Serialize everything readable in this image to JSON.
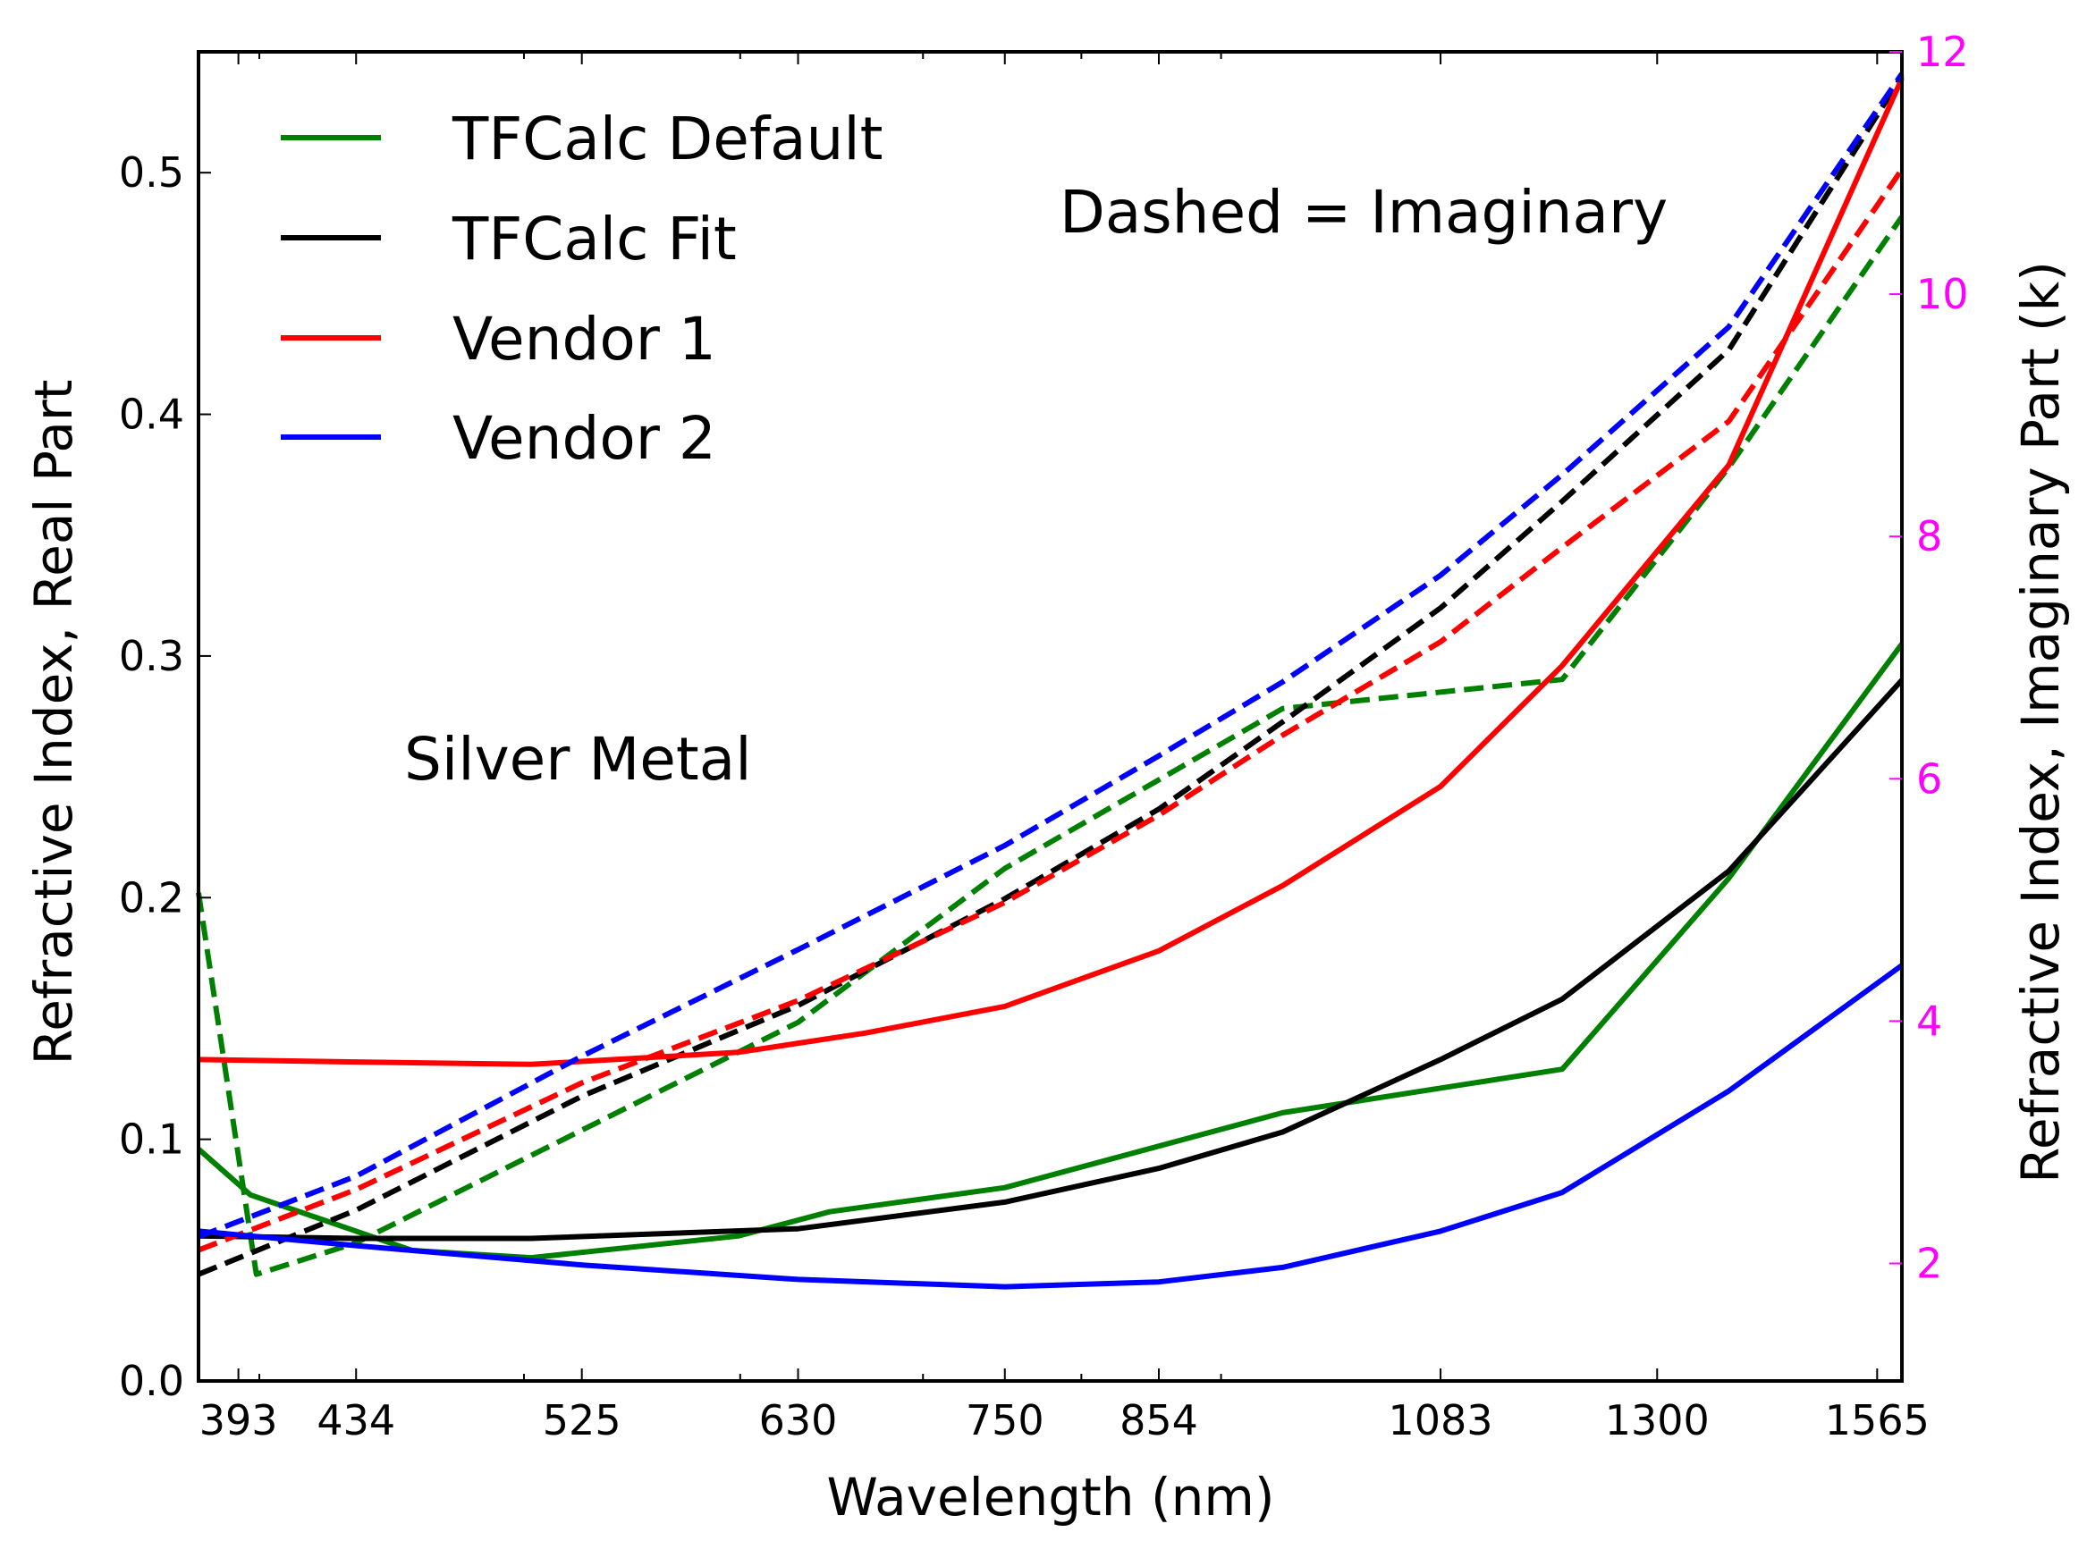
{
  "chart_data": {
    "type": "line",
    "title": "",
    "xlabel": "Wavelength (nm)",
    "ylabel": "Refractive Index,  Real Part",
    "ylabel_right": "Refractive Index, Imaginary Part (k)",
    "xscale": "log",
    "xlim": [
      380,
      1598
    ],
    "ylim": [
      0,
      0.55
    ],
    "ylim_right": [
      1.03,
      12
    ],
    "x_ticks": [
      393,
      434,
      525,
      630,
      750,
      854,
      1083,
      1300,
      1565
    ],
    "x_minor_ticks": [
      400,
      500,
      600,
      700,
      800,
      900
    ],
    "y_ticks": [
      "0.0",
      "0.1",
      "0.2",
      "0.3",
      "0.4",
      "0.5"
    ],
    "y_ticks_right": [
      "2",
      "4",
      "6",
      "8",
      "10",
      "12"
    ],
    "right_axis_color": "#ff00ff",
    "grid": false,
    "legend_placement": "top-left",
    "annotations": [
      "Dashed = Imaginary",
      "Silver Metal"
    ],
    "series": [
      {
        "name": "TFCalc Default",
        "color": "#008000",
        "axis": "left",
        "style": "solid",
        "x": [
          380,
          397,
          434,
          455,
          503,
          599,
          647,
          750,
          948,
          1200,
          1381,
          1598
        ],
        "y": [
          0.096,
          0.077,
          0.062,
          0.054,
          0.051,
          0.06,
          0.07,
          0.08,
          0.111,
          0.129,
          0.208,
          0.305
        ]
      },
      {
        "name": "TFCalc Default",
        "color": "#008000",
        "axis": "right",
        "style": "dashed",
        "x": [
          380,
          399,
          434,
          525,
          630,
          750,
          948,
          1200,
          1381,
          1598
        ],
        "y": [
          5.06,
          1.91,
          2.17,
          3.1,
          3.99,
          5.26,
          6.58,
          6.82,
          8.57,
          10.64
        ]
      },
      {
        "name": "TFCalc Fit",
        "color": "#000000",
        "axis": "left",
        "style": "solid",
        "x": [
          380,
          434,
          503,
          630,
          750,
          854,
          948,
          1083,
          1200,
          1381,
          1598
        ],
        "y": [
          0.06,
          0.059,
          0.059,
          0.063,
          0.074,
          0.088,
          0.103,
          0.133,
          0.158,
          0.211,
          0.29
        ]
      },
      {
        "name": "TFCalc Fit",
        "color": "#000000",
        "axis": "right",
        "style": "dashed",
        "x": [
          380,
          434,
          525,
          630,
          750,
          854,
          948,
          1083,
          1200,
          1381,
          1598
        ],
        "y": [
          1.91,
          2.44,
          3.38,
          4.13,
          5.01,
          5.75,
          6.47,
          7.41,
          8.29,
          9.54,
          11.8
        ]
      },
      {
        "name": "Vendor 1",
        "color": "#ff0000",
        "axis": "left",
        "style": "solid",
        "x": [
          380,
          434,
          503,
          599,
          667,
          750,
          854,
          948,
          1083,
          1200,
          1381,
          1598
        ],
        "y": [
          0.133,
          0.132,
          0.131,
          0.136,
          0.144,
          0.155,
          0.178,
          0.205,
          0.246,
          0.296,
          0.379,
          0.539
        ]
      },
      {
        "name": "Vendor 1",
        "color": "#ff0000",
        "axis": "right",
        "style": "dashed",
        "x": [
          380,
          434,
          525,
          630,
          750,
          854,
          948,
          1083,
          1200,
          1381,
          1598
        ],
        "y": [
          2.11,
          2.61,
          3.49,
          4.17,
          4.98,
          5.7,
          6.36,
          7.13,
          7.91,
          8.95,
          11.03
        ]
      },
      {
        "name": "Vendor 2",
        "color": "#0000ff",
        "axis": "left",
        "style": "solid",
        "x": [
          380,
          434,
          525,
          630,
          750,
          854,
          948,
          1083,
          1200,
          1381,
          1598
        ],
        "y": [
          0.062,
          0.056,
          0.048,
          0.042,
          0.039,
          0.041,
          0.047,
          0.062,
          0.078,
          0.12,
          0.172
        ]
      },
      {
        "name": "Vendor 2",
        "color": "#0000ff",
        "axis": "right",
        "style": "dashed",
        "x": [
          380,
          434,
          525,
          630,
          750,
          854,
          948,
          1083,
          1200,
          1381,
          1598
        ],
        "y": [
          2.22,
          2.72,
          3.71,
          4.59,
          5.45,
          6.19,
          6.8,
          7.68,
          8.51,
          9.73,
          11.82
        ]
      }
    ],
    "legend": [
      {
        "label": "TFCalc Default",
        "color": "#008000"
      },
      {
        "label": "TFCalc Fit",
        "color": "#000000"
      },
      {
        "label": "Vendor 1",
        "color": "#ff0000"
      },
      {
        "label": "Vendor 2",
        "color": "#0000ff"
      }
    ]
  }
}
